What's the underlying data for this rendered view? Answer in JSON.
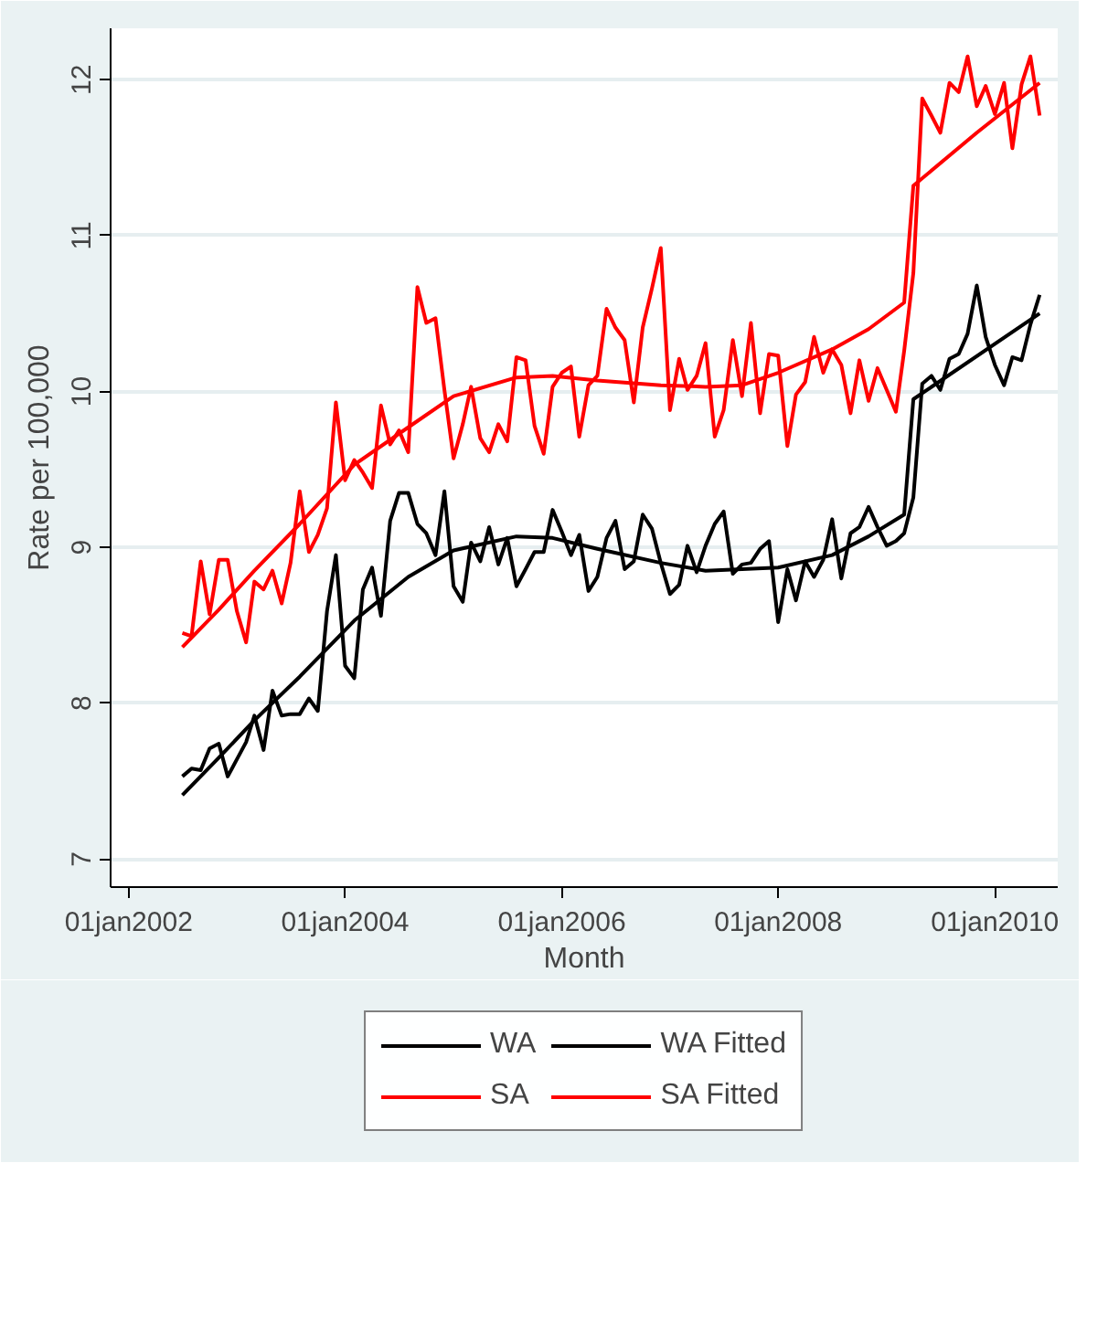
{
  "chart_data": {
    "type": "line",
    "xlabel": "Month",
    "ylabel": "Rate per 100,000",
    "x": [
      "2002-07",
      "2002-08",
      "2002-09",
      "2002-10",
      "2002-11",
      "2002-12",
      "2003-01",
      "2003-02",
      "2003-03",
      "2003-04",
      "2003-05",
      "2003-06",
      "2003-07",
      "2003-08",
      "2003-09",
      "2003-10",
      "2003-11",
      "2003-12",
      "2004-01",
      "2004-02",
      "2004-03",
      "2004-04",
      "2004-05",
      "2004-06",
      "2004-07",
      "2004-08",
      "2004-09",
      "2004-10",
      "2004-11",
      "2004-12",
      "2005-01",
      "2005-02",
      "2005-03",
      "2005-04",
      "2005-05",
      "2005-06",
      "2005-07",
      "2005-08",
      "2005-09",
      "2005-10",
      "2005-11",
      "2005-12",
      "2006-01",
      "2006-02",
      "2006-03",
      "2006-04",
      "2006-05",
      "2006-06",
      "2006-07",
      "2006-08",
      "2006-09",
      "2006-10",
      "2006-11",
      "2006-12",
      "2007-01",
      "2007-02",
      "2007-03",
      "2007-04",
      "2007-05",
      "2007-06",
      "2007-07",
      "2007-08",
      "2007-09",
      "2007-10",
      "2007-11",
      "2007-12",
      "2008-01",
      "2008-02",
      "2008-03",
      "2008-04",
      "2008-05",
      "2008-06",
      "2008-07",
      "2008-08",
      "2008-09",
      "2008-10",
      "2008-11",
      "2008-12",
      "2009-01",
      "2009-02",
      "2009-03",
      "2009-04",
      "2009-05",
      "2009-06",
      "2009-07",
      "2009-08",
      "2009-09",
      "2009-10",
      "2009-11",
      "2009-12",
      "2010-01",
      "2010-02",
      "2010-03",
      "2010-04",
      "2010-05",
      "2010-06"
    ],
    "series": [
      {
        "name": "WA",
        "color": "#000000",
        "values": [
          7.53,
          7.58,
          7.57,
          7.71,
          7.74,
          7.53,
          7.64,
          7.75,
          7.92,
          7.7,
          8.08,
          7.92,
          7.93,
          7.93,
          8.03,
          7.95,
          8.59,
          8.95,
          8.24,
          8.16,
          8.73,
          8.87,
          8.56,
          9.17,
          9.35,
          9.35,
          9.15,
          9.09,
          8.95,
          9.36,
          8.75,
          8.65,
          9.03,
          8.91,
          9.13,
          8.89,
          9.06,
          8.75,
          8.86,
          8.97,
          8.97,
          9.24,
          9.1,
          8.95,
          9.08,
          8.72,
          8.81,
          9.06,
          9.17,
          8.86,
          8.91,
          9.21,
          9.12,
          8.9,
          8.7,
          8.76,
          9.01,
          8.84,
          9.01,
          9.15,
          9.23,
          8.83,
          8.89,
          8.9,
          8.99,
          9.04,
          8.52,
          8.86,
          8.66,
          8.91,
          8.81,
          8.92,
          9.18,
          8.8,
          9.09,
          9.13,
          9.26,
          9.13,
          9.01,
          9.04,
          9.09,
          9.32,
          10.05,
          10.1,
          10.01,
          10.21,
          10.24,
          10.37,
          10.68,
          10.35,
          10.17,
          10.04,
          10.22,
          10.2,
          10.43,
          10.62
        ]
      },
      {
        "name": "WA Fitted",
        "color": "#000000",
        "x": [
          "2002-07",
          "2002-11",
          "2003-03",
          "2003-08",
          "2004-02",
          "2004-08",
          "2005-01",
          "2005-08",
          "2005-12",
          "2006-05",
          "2006-12",
          "2007-05",
          "2007-09",
          "2008-01",
          "2008-07",
          "2008-11",
          "2009-03",
          "2009-04",
          "2010-06"
        ],
        "values": [
          7.41,
          7.65,
          7.89,
          8.17,
          8.53,
          8.81,
          8.98,
          9.07,
          9.06,
          8.99,
          8.9,
          8.85,
          8.86,
          8.87,
          8.95,
          9.07,
          9.21,
          9.95,
          10.5
        ]
      },
      {
        "name": "SA",
        "color": "#ff0000",
        "values": [
          8.45,
          8.43,
          8.91,
          8.57,
          8.92,
          8.92,
          8.59,
          8.39,
          8.78,
          8.73,
          8.85,
          8.64,
          8.9,
          9.36,
          8.97,
          9.08,
          9.25,
          9.93,
          9.43,
          9.56,
          9.48,
          9.38,
          9.91,
          9.66,
          9.75,
          9.61,
          10.67,
          10.44,
          10.47,
          10.01,
          9.57,
          9.79,
          10.03,
          9.7,
          9.61,
          9.79,
          9.68,
          10.22,
          10.2,
          9.78,
          9.6,
          10.03,
          10.12,
          10.16,
          9.71,
          10.04,
          10.1,
          10.53,
          10.41,
          10.33,
          9.93,
          10.41,
          10.66,
          10.92,
          9.88,
          10.21,
          10.01,
          10.1,
          10.31,
          9.71,
          9.88,
          10.33,
          9.97,
          10.44,
          9.86,
          10.24,
          10.23,
          9.65,
          9.98,
          10.06,
          10.35,
          10.12,
          10.27,
          10.17,
          9.86,
          10.2,
          9.94,
          10.15,
          10.01,
          9.87,
          10.26,
          10.76,
          11.88,
          11.77,
          11.66,
          11.98,
          11.92,
          12.15,
          11.83,
          11.96,
          11.78,
          11.98,
          11.56,
          11.97,
          12.15,
          11.77
        ]
      },
      {
        "name": "SA Fitted",
        "color": "#ff0000",
        "x": [
          "2002-07",
          "2002-11",
          "2003-03",
          "2003-08",
          "2004-02",
          "2004-08",
          "2005-01",
          "2005-08",
          "2005-12",
          "2006-05",
          "2006-12",
          "2007-05",
          "2007-09",
          "2008-01",
          "2008-07",
          "2008-11",
          "2009-03",
          "2009-04",
          "2009-11",
          "2010-06"
        ],
        "values": [
          8.36,
          8.6,
          8.85,
          9.15,
          9.53,
          9.77,
          9.97,
          10.09,
          10.1,
          10.07,
          10.04,
          10.03,
          10.04,
          10.12,
          10.27,
          10.4,
          10.57,
          11.32,
          11.66,
          11.98
        ]
      }
    ],
    "xlim": [
      "2001-11",
      "2010-08"
    ],
    "xticks": [
      {
        "value": "2002-01-01",
        "label": "01jan2002"
      },
      {
        "value": "2004-01-01",
        "label": "01jan2004"
      },
      {
        "value": "2006-01-01",
        "label": "01jan2006"
      },
      {
        "value": "2008-01-01",
        "label": "01jan2008"
      },
      {
        "value": "2010-01-01",
        "label": "01jan2010"
      }
    ],
    "ylim": [
      6.82,
      12.33
    ],
    "yticks": [
      7,
      8,
      9,
      10,
      11,
      12
    ],
    "grid": "y",
    "legend": "bottom",
    "marker": "none",
    "line_style": "solid"
  }
}
